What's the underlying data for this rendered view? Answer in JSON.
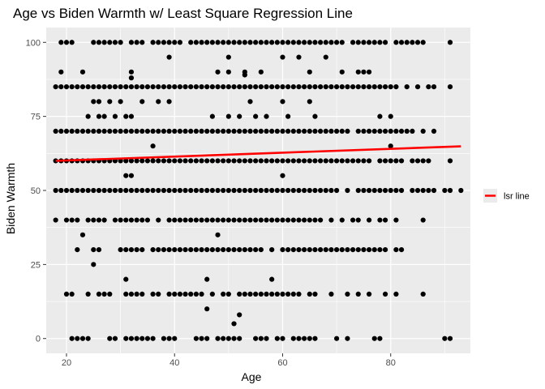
{
  "chart_data": {
    "type": "scatter",
    "title": "Age vs Biden Warmth w/ Least Square Regression Line",
    "xlabel": "Age",
    "ylabel": "Biden Warmth",
    "xlim": [
      16.25,
      94.75
    ],
    "ylim": [
      -5,
      105
    ],
    "x_ticks": [
      20,
      40,
      60,
      80
    ],
    "y_ticks": [
      0,
      25,
      50,
      75,
      100
    ],
    "grid": true,
    "legend_position": "right",
    "colors": {
      "panel": "#ebebeb",
      "grid": "#ffffff",
      "points": "#000000",
      "line": "#ff0000"
    },
    "series": [
      {
        "type": "scatter",
        "rows": [
          {
            "y": 100,
            "x": [
              19,
              20,
              21,
              25,
              26,
              27,
              28,
              29,
              30,
              32,
              33,
              34,
              36,
              37,
              38,
              39,
              40,
              41,
              43,
              44,
              45,
              46,
              47,
              48,
              49,
              50,
              51,
              52,
              53,
              54,
              55,
              56,
              57,
              58,
              59,
              60,
              61,
              62,
              63,
              64,
              65,
              66,
              67,
              68,
              69,
              70,
              71,
              73,
              74,
              75,
              76,
              77,
              78,
              79,
              81,
              82,
              83,
              84,
              85,
              86,
              91
            ]
          },
          {
            "y": 95,
            "x": [
              39,
              50,
              60,
              63,
              68
            ]
          },
          {
            "y": 90,
            "x": [
              19,
              23,
              32,
              48,
              50,
              53,
              56,
              65,
              71,
              74,
              75,
              76
            ]
          },
          {
            "y": 89,
            "x": [
              53
            ]
          },
          {
            "y": 88,
            "x": [
              32
            ]
          },
          {
            "y": 85,
            "x": [
              18,
              19,
              20,
              21,
              22,
              23,
              24,
              25,
              26,
              27,
              28,
              29,
              30,
              31,
              32,
              33,
              34,
              35,
              36,
              37,
              38,
              39,
              40,
              41,
              42,
              43,
              44,
              45,
              46,
              47,
              48,
              49,
              50,
              51,
              52,
              53,
              54,
              55,
              56,
              57,
              58,
              59,
              60,
              61,
              62,
              63,
              64,
              65,
              66,
              67,
              68,
              69,
              70,
              71,
              72,
              73,
              74,
              75,
              76,
              77,
              78,
              79,
              80,
              81,
              83,
              85,
              87,
              88,
              91
            ]
          },
          {
            "y": 80,
            "x": [
              25,
              26,
              28,
              30,
              34,
              37,
              39,
              54,
              60,
              65
            ]
          },
          {
            "y": 75,
            "x": [
              24,
              26,
              27,
              29,
              31,
              32,
              47,
              50,
              52,
              55,
              57,
              61,
              66,
              78,
              80
            ]
          },
          {
            "y": 70,
            "x": [
              18,
              19,
              20,
              21,
              22,
              23,
              24,
              25,
              26,
              27,
              28,
              29,
              30,
              31,
              32,
              33,
              34,
              35,
              36,
              37,
              38,
              39,
              40,
              41,
              42,
              43,
              44,
              45,
              46,
              47,
              48,
              49,
              50,
              51,
              52,
              53,
              54,
              55,
              56,
              57,
              58,
              59,
              60,
              61,
              62,
              63,
              64,
              65,
              66,
              67,
              68,
              69,
              70,
              71,
              72,
              74,
              75,
              76,
              77,
              78,
              79,
              80,
              81,
              82,
              83,
              84,
              86,
              88
            ]
          },
          {
            "y": 65,
            "x": [
              36,
              80
            ]
          },
          {
            "y": 60,
            "x": [
              18,
              19,
              20,
              21,
              22,
              23,
              24,
              25,
              26,
              27,
              28,
              29,
              30,
              31,
              32,
              33,
              34,
              35,
              36,
              37,
              38,
              39,
              40,
              41,
              42,
              43,
              44,
              45,
              46,
              47,
              48,
              49,
              50,
              51,
              52,
              53,
              54,
              55,
              56,
              57,
              58,
              59,
              60,
              61,
              62,
              63,
              64,
              65,
              66,
              67,
              68,
              69,
              70,
              71,
              72,
              73,
              74,
              75,
              76,
              78,
              79,
              80,
              81,
              82,
              84,
              85,
              86,
              87,
              91
            ]
          },
          {
            "y": 55,
            "x": [
              31,
              32,
              60
            ]
          },
          {
            "y": 50,
            "x": [
              18,
              19,
              20,
              21,
              22,
              23,
              24,
              25,
              26,
              27,
              28,
              29,
              30,
              31,
              32,
              33,
              34,
              35,
              36,
              37,
              38,
              39,
              40,
              41,
              42,
              43,
              44,
              45,
              46,
              47,
              48,
              49,
              50,
              51,
              52,
              53,
              54,
              55,
              56,
              57,
              58,
              59,
              60,
              61,
              62,
              63,
              64,
              65,
              66,
              67,
              68,
              69,
              70,
              72,
              74,
              75,
              76,
              77,
              78,
              79,
              80,
              81,
              82,
              84,
              85,
              86,
              87,
              88,
              90,
              91,
              93
            ]
          },
          {
            "y": 40,
            "x": [
              18,
              20,
              21,
              22,
              24,
              25,
              26,
              27,
              29,
              30,
              31,
              32,
              33,
              34,
              35,
              37,
              39,
              40,
              41,
              42,
              43,
              44,
              45,
              46,
              47,
              48,
              49,
              50,
              51,
              52,
              53,
              54,
              55,
              56,
              57,
              58,
              59,
              60,
              61,
              62,
              63,
              64,
              65,
              66,
              67,
              69,
              71,
              73,
              74,
              76,
              78,
              79,
              81,
              86
            ]
          },
          {
            "y": 35,
            "x": [
              23,
              48
            ]
          },
          {
            "y": 30,
            "x": [
              22,
              25,
              26,
              30,
              31,
              32,
              33,
              34,
              36,
              37,
              38,
              39,
              40,
              41,
              42,
              43,
              44,
              45,
              46,
              47,
              48,
              49,
              50,
              51,
              52,
              53,
              54,
              55,
              56,
              58,
              60,
              61,
              62,
              63,
              64,
              65,
              66,
              67,
              68,
              69,
              70,
              71,
              72,
              73,
              74,
              75,
              76,
              77,
              78,
              79,
              81,
              82
            ]
          },
          {
            "y": 25,
            "x": [
              25
            ]
          },
          {
            "y": 20,
            "x": [
              31,
              46,
              58
            ]
          },
          {
            "y": 15,
            "x": [
              20,
              21,
              24,
              26,
              27,
              28,
              31,
              32,
              33,
              34,
              36,
              37,
              39,
              40,
              41,
              42,
              43,
              44,
              45,
              47,
              49,
              50,
              52,
              53,
              54,
              55,
              56,
              57,
              58,
              59,
              60,
              61,
              62,
              63,
              65,
              66,
              69,
              72,
              74,
              76,
              79,
              81,
              86
            ]
          },
          {
            "y": 10,
            "x": [
              46
            ]
          },
          {
            "y": 8,
            "x": [
              52
            ]
          },
          {
            "y": 5,
            "x": [
              51
            ]
          },
          {
            "y": 0,
            "x": [
              21,
              22,
              23,
              24,
              28,
              29,
              31,
              32,
              33,
              34,
              35,
              36,
              38,
              39,
              40,
              44,
              45,
              46,
              48,
              49,
              50,
              51,
              52,
              55,
              56,
              57,
              59,
              60,
              62,
              63,
              64,
              65,
              66,
              70,
              72,
              77,
              78,
              90,
              91
            ]
          }
        ]
      },
      {
        "type": "line",
        "name": "lsr line",
        "x": [
          18,
          93
        ],
        "y": [
          60.0,
          64.9
        ]
      }
    ]
  }
}
